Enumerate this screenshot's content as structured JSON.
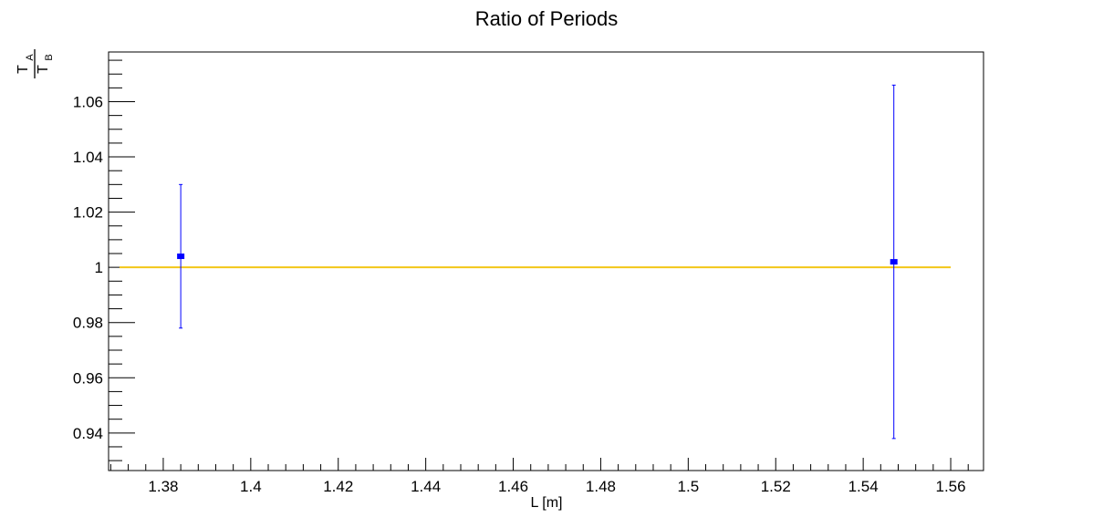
{
  "chart_data": {
    "type": "scatter",
    "title": "Ratio of Periods",
    "xlabel": "L [m]",
    "ylabel": {
      "numerator": "T",
      "numerator_sub": "A",
      "denominator": "T",
      "denominator_sub": "B"
    },
    "xlim": [
      1.3675,
      1.5675
    ],
    "ylim": [
      0.9264,
      1.078
    ],
    "x_ticks": [
      1.38,
      1.4,
      1.42,
      1.44,
      1.46,
      1.48,
      1.5,
      1.52,
      1.54,
      1.56
    ],
    "x_tick_labels": [
      "1.38",
      "1.4",
      "1.42",
      "1.44",
      "1.46",
      "1.48",
      "1.5",
      "1.52",
      "1.54",
      "1.56"
    ],
    "y_ticks": [
      0.94,
      0.96,
      0.98,
      1.0,
      1.02,
      1.04,
      1.06
    ],
    "y_tick_labels": [
      "0.94",
      "0.96",
      "0.98",
      "1",
      "1.02",
      "1.04",
      "1.06"
    ],
    "grid": false,
    "legend": "none",
    "series": [
      {
        "points": [
          {
            "x": 1.384,
            "y": 1.004,
            "yerr_low": 0.026,
            "yerr_high": 0.026
          },
          {
            "x": 1.547,
            "y": 1.002,
            "yerr_low": 0.064,
            "yerr_high": 0.064
          }
        ],
        "color": "#0000ff"
      }
    ],
    "reference_line": {
      "y": 1.0,
      "x_range": [
        1.37,
        1.56
      ],
      "color": "#f2c718"
    }
  }
}
